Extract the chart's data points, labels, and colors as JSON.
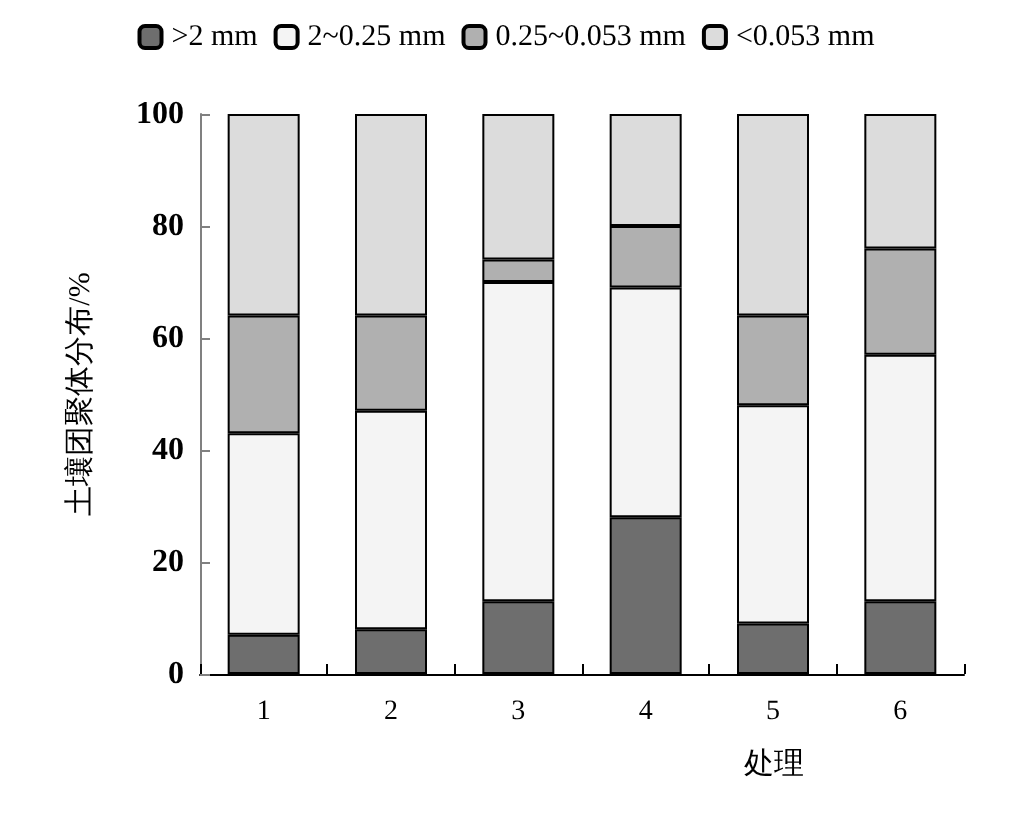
{
  "chart_data": {
    "type": "bar",
    "stacked": true,
    "xlabel": "处理",
    "ylabel": "土壤团聚体分布/%",
    "categories": [
      "1",
      "2",
      "3",
      "4",
      "5",
      "6"
    ],
    "series": [
      {
        "name": ">2 mm",
        "color": "#6e6e6e",
        "values": [
          7,
          8,
          13,
          28,
          9,
          13
        ]
      },
      {
        "name": "2~0.25 mm",
        "color": "#f4f4f4",
        "values": [
          36,
          39,
          57,
          41,
          39,
          44
        ]
      },
      {
        "name": "0.25~0.053 mm",
        "color": "#b0b0b0",
        "values": [
          21,
          17,
          4,
          11,
          16,
          19
        ]
      },
      {
        "name": "<0.053 mm",
        "color": "#dcdcdc",
        "values": [
          36,
          36,
          26,
          20,
          36,
          24
        ]
      }
    ],
    "ylim": [
      0,
      100
    ],
    "yticks": [
      0,
      20,
      40,
      60,
      80,
      100
    ],
    "grid": false,
    "legend": "top"
  }
}
